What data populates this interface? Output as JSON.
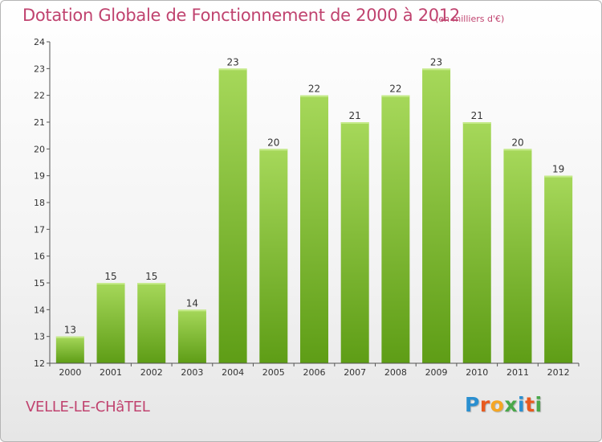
{
  "header": {
    "title": "Dotation Globale de Fonctionnement de 2000 à 2012",
    "unit": "(en milliers d'€)"
  },
  "footer": {
    "commune": "VELLE-LE-CHâTEL",
    "brand_letters": [
      {
        "char": "P",
        "color": "#2a8fd0"
      },
      {
        "char": "r",
        "color": "#e85a1f"
      },
      {
        "char": "o",
        "color": "#f5a623"
      },
      {
        "char": "x",
        "color": "#49a84a"
      },
      {
        "char": "i",
        "color": "#2a8fd0"
      },
      {
        "char": "t",
        "color": "#e85a1f"
      },
      {
        "char": "i",
        "color": "#49a84a"
      }
    ]
  },
  "colors": {
    "bar_top": "#a6d85a",
    "bar_bottom": "#5e9d16",
    "axis": "#555555",
    "text": "#333333",
    "accent": "#c0436f"
  },
  "chart_data": {
    "type": "bar",
    "categories": [
      "2000",
      "2001",
      "2002",
      "2003",
      "2004",
      "2005",
      "2006",
      "2007",
      "2008",
      "2009",
      "2010",
      "2011",
      "2012"
    ],
    "values": [
      13,
      15,
      15,
      14,
      23,
      20,
      22,
      21,
      22,
      23,
      21,
      20,
      19
    ],
    "ylim": [
      12,
      24
    ],
    "yticks": [
      12,
      13,
      14,
      15,
      16,
      17,
      18,
      19,
      20,
      21,
      22,
      23,
      24
    ],
    "grid": false,
    "legend": "none"
  }
}
